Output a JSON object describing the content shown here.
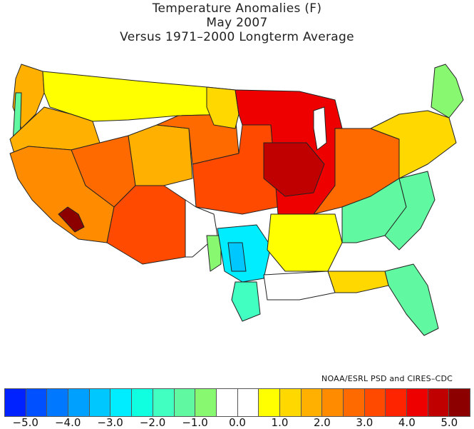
{
  "title": {
    "line1": "Temperature Anomalies (F)",
    "line2": "May 2007",
    "line3": "Versus 1971–2000 Longterm Average"
  },
  "credit": "NOAA/ESRL PSD and CIRES–CDC",
  "legend": {
    "colors": [
      "#0022ff",
      "#0050ff",
      "#0078ff",
      "#00a0ff",
      "#00c8ff",
      "#00ecff",
      "#10ffe0",
      "#40ffc0",
      "#60f8a0",
      "#88f870",
      "#ffffff",
      "#ffffff",
      "#ffff00",
      "#ffd800",
      "#ffb000",
      "#ff8c00",
      "#ff6a00",
      "#ff4a00",
      "#ff2400",
      "#ee0000",
      "#c00000",
      "#8c0000"
    ],
    "ticks": [
      "−5.0",
      "−4.0",
      "−3.0",
      "−2.0",
      "−1.0",
      "0.0",
      "1.0",
      "2.0",
      "3.0",
      "4.0",
      "5.0"
    ]
  },
  "map": {
    "regions": [
      {
        "name": "washington-coast",
        "color": "#60f8a0"
      },
      {
        "name": "pacific-northwest",
        "color": "#ffb000"
      },
      {
        "name": "northern-rockies",
        "color": "#ffff00"
      },
      {
        "name": "great-basin",
        "color": "#ff6a00"
      },
      {
        "name": "california",
        "color": "#ff8c00"
      },
      {
        "name": "southwest-desert",
        "color": "#ff4a00"
      },
      {
        "name": "nevada-hotspot",
        "color": "#8c0000"
      },
      {
        "name": "colorado-plateau",
        "color": "#ffb000"
      },
      {
        "name": "wyoming",
        "color": "#ff6a00"
      },
      {
        "name": "northern-plains",
        "color": "#ffd800"
      },
      {
        "name": "central-plains",
        "color": "#ff4a00"
      },
      {
        "name": "midwest",
        "color": "#ee0000"
      },
      {
        "name": "midwest-core",
        "color": "#c00000"
      },
      {
        "name": "ohio-valley",
        "color": "#ff6a00"
      },
      {
        "name": "northeast",
        "color": "#ffd800"
      },
      {
        "name": "maine",
        "color": "#88f870"
      },
      {
        "name": "new-mexico-east",
        "color": "#88f870"
      },
      {
        "name": "texas-west",
        "color": "#00ecff"
      },
      {
        "name": "texas-pocket",
        "color": "#00c8ff"
      },
      {
        "name": "texas-south",
        "color": "#40ffc0"
      },
      {
        "name": "gulf-coast",
        "color": "#ffffff"
      },
      {
        "name": "lower-mississippi",
        "color": "#ffff00"
      },
      {
        "name": "southeast-coast",
        "color": "#60f8a0"
      },
      {
        "name": "florida",
        "color": "#60f8a0"
      },
      {
        "name": "southern-appalachia",
        "color": "#ffd800"
      }
    ]
  }
}
